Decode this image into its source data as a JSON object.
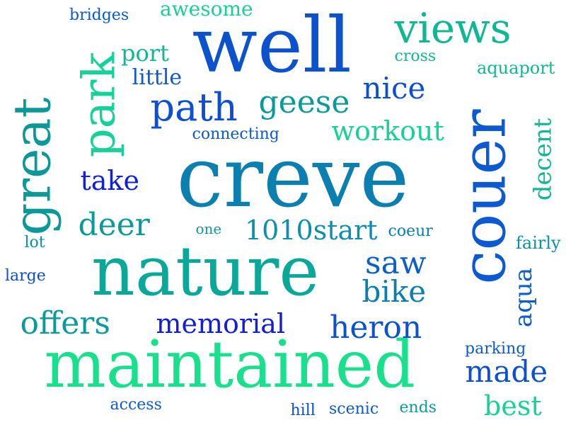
{
  "words": [
    {
      "text": "creve",
      "color": "#0a7fb0",
      "vertical": false
    },
    {
      "text": "well",
      "color": "#0c52cc",
      "vertical": false
    },
    {
      "text": "nature",
      "color": "#0aa898",
      "vertical": false
    },
    {
      "text": "maintained",
      "color": "#18e08c",
      "vertical": false
    },
    {
      "text": "couer",
      "color": "#0c5ad2",
      "vertical": true
    },
    {
      "text": "great",
      "color": "#0a9898",
      "vertical": true
    },
    {
      "text": "park",
      "color": "#14d29a",
      "vertical": true
    },
    {
      "text": "views",
      "color": "#10b892",
      "vertical": false
    },
    {
      "text": "path",
      "color": "#0c4fd2",
      "vertical": false
    },
    {
      "text": "geese",
      "color": "#0a9a9a",
      "vertical": false
    },
    {
      "text": "nice",
      "color": "#0c4fd2",
      "vertical": false
    },
    {
      "text": "workout",
      "color": "#18d295",
      "vertical": false
    },
    {
      "text": "deer",
      "color": "#0a9a9a",
      "vertical": false
    },
    {
      "text": "1010start",
      "color": "#0a8fae",
      "vertical": false
    },
    {
      "text": "saw",
      "color": "#0c5fc8",
      "vertical": false
    },
    {
      "text": "bike",
      "color": "#0a7fb0",
      "vertical": false
    },
    {
      "text": "heron",
      "color": "#0c52cc",
      "vertical": false
    },
    {
      "text": "offers",
      "color": "#0a9a9a",
      "vertical": false
    },
    {
      "text": "memorial",
      "color": "#1020d8",
      "vertical": false
    },
    {
      "text": "made",
      "color": "#0c4fd2",
      "vertical": false
    },
    {
      "text": "best",
      "color": "#18d295",
      "vertical": false
    },
    {
      "text": "decent",
      "color": "#10b892",
      "vertical": true
    },
    {
      "text": "aqua",
      "color": "#0c5fc8",
      "vertical": true
    },
    {
      "text": "take",
      "color": "#1020d8",
      "vertical": false
    },
    {
      "text": "port",
      "color": "#10b892",
      "vertical": false
    },
    {
      "text": "little",
      "color": "#0c5ad2",
      "vertical": false
    },
    {
      "text": "awesome",
      "color": "#18d295",
      "vertical": false
    },
    {
      "text": "bridges",
      "color": "#0c5ad2",
      "vertical": false
    },
    {
      "text": "cross",
      "color": "#10b892",
      "vertical": false
    },
    {
      "text": "aquaport",
      "color": "#10b892",
      "vertical": false
    },
    {
      "text": "connecting",
      "color": "#0c5ad2",
      "vertical": false
    },
    {
      "text": "one",
      "color": "#0a9a9a",
      "vertical": false
    },
    {
      "text": "coeur",
      "color": "#0a7fb0",
      "vertical": false
    },
    {
      "text": "lot",
      "color": "#0a8fae",
      "vertical": false
    },
    {
      "text": "large",
      "color": "#0c4fd2",
      "vertical": false
    },
    {
      "text": "fairly",
      "color": "#0a8fae",
      "vertical": false
    },
    {
      "text": "parking",
      "color": "#0c5ad2",
      "vertical": false
    },
    {
      "text": "access",
      "color": "#0c5ad2",
      "vertical": false
    },
    {
      "text": "hill",
      "color": "#0c4fd2",
      "vertical": false
    },
    {
      "text": "scenic",
      "color": "#0c5ad2",
      "vertical": false
    },
    {
      "text": "ends",
      "color": "#0a9a9a",
      "vertical": false
    }
  ]
}
